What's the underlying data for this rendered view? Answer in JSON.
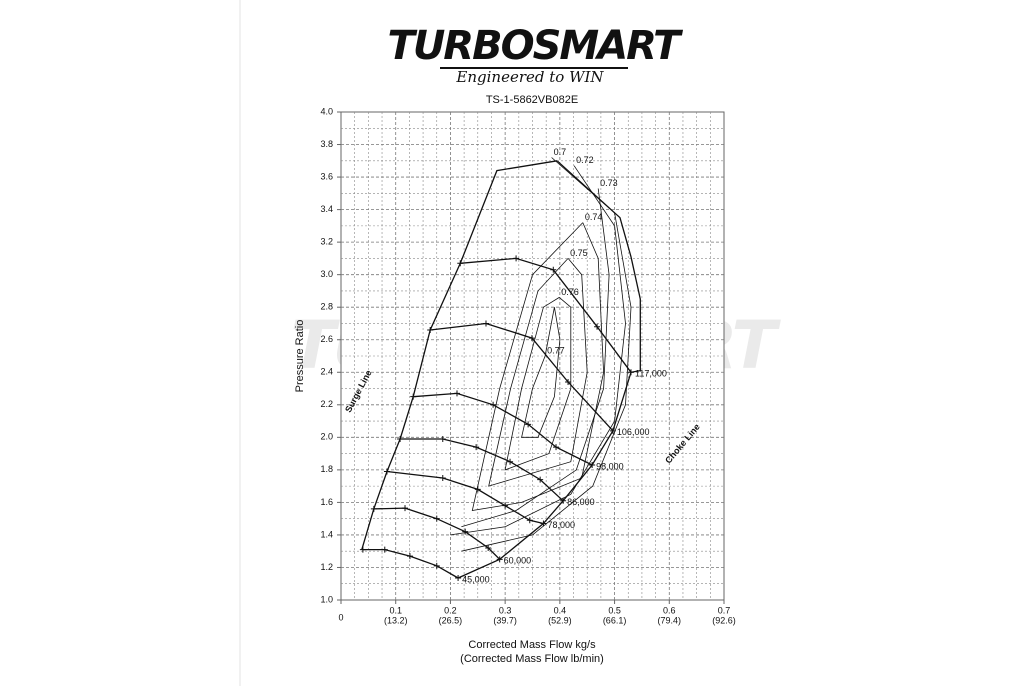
{
  "header": {
    "brand": "TURBOSMART",
    "tagline": "Engineered to WIN"
  },
  "chart_data": {
    "type": "compressor-map",
    "title": "TS-1-5862VB082E",
    "xlabel": "Corrected Mass Flow kg/s",
    "xlabel2": "(Corrected Mass Flow lb/min)",
    "ylabel": "Pressure Ratio",
    "xlim": [
      0,
      0.7
    ],
    "ylim": [
      1,
      4
    ],
    "xticks": [
      0,
      {
        "value": 0.1,
        "label": "0.1",
        "sublabel": "(13.2)"
      },
      {
        "value": 0.2,
        "label": "0.2",
        "sublabel": "(26.5)"
      },
      {
        "value": 0.3,
        "label": "0.3",
        "sublabel": "(39.7)"
      },
      {
        "value": 0.4,
        "label": "0.4",
        "sublabel": "(52.9)"
      },
      {
        "value": 0.5,
        "label": "0.5",
        "sublabel": "(66.1)"
      },
      {
        "value": 0.6,
        "label": "0.6",
        "sublabel": "(79.4)"
      },
      {
        "value": 0.7,
        "label": "0.7",
        "sublabel": "(92.6)"
      }
    ],
    "yticks": [
      {
        "value": 1,
        "label": "1.0"
      },
      1.2,
      1.4,
      1.6,
      1.8,
      {
        "value": 2,
        "label": "2.0"
      },
      2.2,
      2.4,
      2.6,
      2.8,
      {
        "value": 3,
        "label": "3.0"
      },
      3.2,
      3.4,
      3.6,
      3.8,
      {
        "value": 4,
        "label": "4.0"
      }
    ],
    "grid": true,
    "color": "#111111",
    "series": [
      {
        "name": "45,000",
        "x": [
          0.04,
          0.08,
          0.126,
          0.175,
          0.214
        ],
        "values": [
          1.31,
          1.31,
          1.27,
          1.21,
          1.135
        ]
      },
      {
        "name": "60,000",
        "x": [
          0.06,
          0.117,
          0.175,
          0.227,
          0.269,
          0.29
        ],
        "values": [
          1.56,
          1.565,
          1.5,
          1.42,
          1.32,
          1.25
        ]
      },
      {
        "name": "78,000",
        "x": [
          0.084,
          0.186,
          0.25,
          0.3,
          0.345,
          0.37
        ],
        "values": [
          1.79,
          1.75,
          1.68,
          1.58,
          1.49,
          1.47
        ]
      },
      {
        "name": "86,000",
        "x": [
          0.108,
          0.186,
          0.247,
          0.309,
          0.364,
          0.406
        ],
        "values": [
          1.99,
          1.99,
          1.94,
          1.85,
          1.74,
          1.61
        ]
      },
      {
        "name": "98,000",
        "x": [
          0.132,
          0.212,
          0.278,
          0.342,
          0.393,
          0.459
        ],
        "values": [
          2.25,
          2.27,
          2.2,
          2.08,
          1.94,
          1.83
        ]
      },
      {
        "name": "106,000",
        "x": [
          0.163,
          0.265,
          0.349,
          0.415,
          0.497
        ],
        "values": [
          2.66,
          2.7,
          2.61,
          2.34,
          2.04
        ]
      },
      {
        "name": "117,000",
        "x": [
          0.218,
          0.32,
          0.388,
          0.468,
          0.53
        ],
        "values": [
          3.07,
          3.1,
          3.03,
          2.68,
          2.4
        ]
      }
    ],
    "surge": {
      "name": "Surge Line",
      "x": [
        0.038,
        0.06,
        0.084,
        0.108,
        0.132,
        0.163,
        0.218,
        0.285,
        0.395
      ],
      "values": [
        1.31,
        1.56,
        1.79,
        1.99,
        2.25,
        2.66,
        3.07,
        3.64,
        3.7
      ]
    },
    "choke": {
      "name": "Choke Line",
      "x": [
        0.395,
        0.51,
        0.53,
        0.547,
        0.547,
        0.53,
        0.497,
        0.459,
        0.406,
        0.37,
        0.29,
        0.214
      ],
      "values": [
        3.7,
        3.35,
        3.11,
        2.85,
        2.41,
        2.4,
        2.04,
        1.83,
        1.61,
        1.47,
        1.25,
        1.135
      ]
    },
    "contours": [
      {
        "name": "0.7",
        "x": [
          0.385,
          0.5,
          0.53,
          0.52,
          0.46,
          0.35,
          0.22
        ],
        "values": [
          3.72,
          3.38,
          2.8,
          2.2,
          1.7,
          1.4,
          1.3
        ]
      },
      {
        "name": "0.72",
        "x": [
          0.426,
          0.5,
          0.52,
          0.5,
          0.42,
          0.3,
          0.2
        ],
        "values": [
          3.67,
          3.3,
          2.7,
          2.1,
          1.65,
          1.45,
          1.4
        ]
      },
      {
        "name": "0.73",
        "x": [
          0.47,
          0.49,
          0.48,
          0.43,
          0.32,
          0.22
        ],
        "values": [
          3.53,
          3.0,
          2.3,
          1.8,
          1.55,
          1.45
        ]
      },
      {
        "name": "0.74",
        "x": [
          0.442,
          0.47,
          0.48,
          0.44,
          0.33,
          0.24,
          0.29,
          0.35,
          0.442
        ],
        "values": [
          3.32,
          3.1,
          2.4,
          1.75,
          1.6,
          1.55,
          2.3,
          3.0,
          3.32
        ]
      },
      {
        "name": "0.75",
        "x": [
          0.415,
          0.44,
          0.45,
          0.42,
          0.27,
          0.31,
          0.36,
          0.415
        ],
        "values": [
          3.1,
          3.0,
          2.4,
          1.85,
          1.7,
          2.3,
          2.9,
          3.1
        ]
      },
      {
        "name": "0.76",
        "x": [
          0.399,
          0.42,
          0.42,
          0.38,
          0.3,
          0.33,
          0.37,
          0.399
        ],
        "values": [
          2.86,
          2.8,
          2.3,
          1.9,
          1.8,
          2.3,
          2.8,
          2.86
        ]
      },
      {
        "name": "0.77",
        "x": [
          0.373,
          0.39,
          0.4,
          0.39,
          0.36,
          0.33,
          0.35,
          0.373
        ],
        "values": [
          2.5,
          2.8,
          2.6,
          2.25,
          2.0,
          2.0,
          2.3,
          2.5
        ]
      }
    ]
  }
}
